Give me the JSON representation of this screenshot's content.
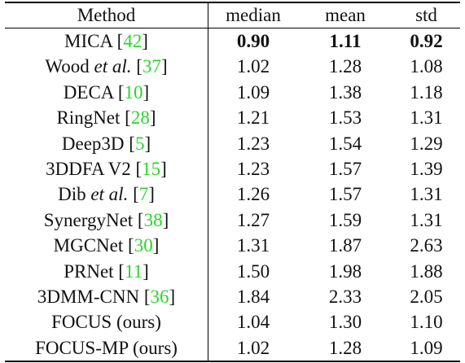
{
  "header": {
    "method": "Method",
    "median": "median",
    "mean": "mean",
    "std": "std"
  },
  "rows": [
    {
      "name": "MICA",
      "suffix": "",
      "cite": "42",
      "median": "0.90",
      "mean": "1.11",
      "std": "0.92",
      "bold": true
    },
    {
      "name": "Wood",
      "suffix": "et al.",
      "cite": "37",
      "median": "1.02",
      "mean": "1.28",
      "std": "1.08",
      "bold": false
    },
    {
      "name": "DECA",
      "suffix": "",
      "cite": "10",
      "median": "1.09",
      "mean": "1.38",
      "std": "1.18",
      "bold": false
    },
    {
      "name": "RingNet",
      "suffix": "",
      "cite": "28",
      "median": "1.21",
      "mean": "1.53",
      "std": "1.31",
      "bold": false
    },
    {
      "name": "Deep3D",
      "suffix": "",
      "cite": "5",
      "median": "1.23",
      "mean": "1.54",
      "std": "1.29",
      "bold": false
    },
    {
      "name": "3DDFA V2",
      "suffix": "",
      "cite": "15",
      "median": "1.23",
      "mean": "1.57",
      "std": "1.39",
      "bold": false
    },
    {
      "name": "Dib",
      "suffix": "et al.",
      "cite": "7",
      "median": "1.26",
      "mean": "1.57",
      "std": "1.31",
      "bold": false
    },
    {
      "name": "SynergyNet",
      "suffix": "",
      "cite": "38",
      "median": "1.27",
      "mean": "1.59",
      "std": "1.31",
      "bold": false
    },
    {
      "name": "MGCNet",
      "suffix": "",
      "cite": "30",
      "median": "1.31",
      "mean": "1.87",
      "std": "2.63",
      "bold": false
    },
    {
      "name": "PRNet",
      "suffix": "",
      "cite": "11",
      "median": "1.50",
      "mean": "1.98",
      "std": "1.88",
      "bold": false
    },
    {
      "name": "3DMM-CNN",
      "suffix": "",
      "cite": "36",
      "median": "1.84",
      "mean": "2.33",
      "std": "2.05",
      "bold": false
    },
    {
      "name": "FOCUS (ours)",
      "suffix": "",
      "cite": "",
      "median": "1.04",
      "mean": "1.30",
      "std": "1.10",
      "bold": false
    },
    {
      "name": "FOCUS-MP (ours)",
      "suffix": "",
      "cite": "",
      "median": "1.02",
      "mean": "1.28",
      "std": "1.09",
      "bold": false
    }
  ],
  "colors": {
    "citation": "#2bd62b",
    "text": "#111111",
    "rule": "#000000"
  }
}
